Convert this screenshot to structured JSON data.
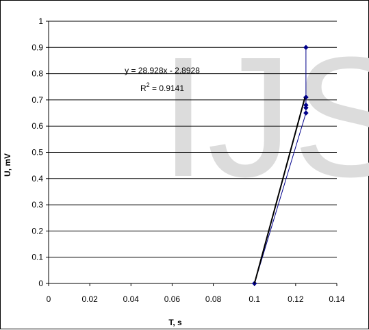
{
  "chart_data": {
    "type": "scatter",
    "watermark": "IJS",
    "xlabel": "T, s",
    "ylabel": "U, mV",
    "xlim": [
      0,
      0.14
    ],
    "ylim": [
      0,
      1
    ],
    "xticks": [
      "0",
      "0.02",
      "0.04",
      "0.06",
      "0.08",
      "0.1",
      "0.12",
      "0.14"
    ],
    "yticks": [
      "0",
      "0.1",
      "0.2",
      "0.3",
      "0.4",
      "0.5",
      "0.6",
      "0.7",
      "0.8",
      "0.9",
      "1"
    ],
    "grid": "horizontal",
    "series": [
      {
        "color": "#00008b",
        "marker": "diamond",
        "x": [
          0.1,
          0.125,
          0.125,
          0.125,
          0.125,
          0.125,
          0.125
        ],
        "y": [
          0.0,
          0.65,
          0.67,
          0.68,
          0.71,
          0.71,
          0.9
        ]
      }
    ],
    "trendline": {
      "color": "#000000",
      "slope": 28.928,
      "intercept": -2.8928,
      "x": [
        0.1,
        0.1245
      ],
      "equation": "y = 28.928x - 2.8928",
      "r2_prefix": "R",
      "r2_sup": "2",
      "r2_value": " = 0.9141"
    }
  }
}
